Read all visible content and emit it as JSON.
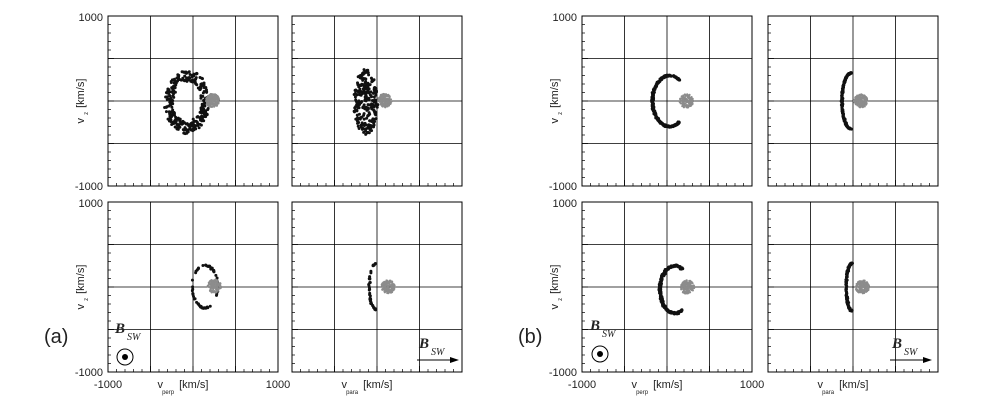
{
  "figure": {
    "panel_labels": [
      "(a)",
      "(b)"
    ],
    "axis_unit": "[km/s]",
    "xlabel_perp": {
      "base": "v",
      "sub": "perp",
      "unit": "[km/s]"
    },
    "xlabel_para": {
      "base": "v",
      "sub": "para",
      "unit": "[km/s]"
    },
    "ylabel": {
      "base": "v",
      "sub": "z",
      "unit": "[km/s]"
    },
    "b_field": {
      "symbol": "B",
      "sub": "SW"
    },
    "colors": {
      "points": "#111111",
      "sw_core": "#8c8c8c",
      "grid": "#000000"
    }
  },
  "chart_data": [
    {
      "type": "scatter",
      "panel": "(a)",
      "row": "top",
      "xaxis": "v_perp",
      "yaxis": "v_z",
      "xlim": [
        -1000,
        1000
      ],
      "ylim": [
        -1000,
        1000
      ],
      "xticks": [
        -1000,
        1000
      ],
      "yticks": [
        1000,
        -1000
      ],
      "grid": true,
      "series": [
        {
          "shape": "filled ring",
          "center": [
            -70,
            -10
          ],
          "radius_x": 260,
          "radius_y": 370,
          "thickness": 130,
          "n_points": 300
        },
        {
          "shape": "core",
          "center": [
            230,
            5
          ],
          "radius": 80
        }
      ]
    },
    {
      "type": "scatter",
      "panel": "(a)",
      "row": "top",
      "xaxis": "v_para",
      "yaxis": "v_z",
      "xlim": [
        -1000,
        1000
      ],
      "ylim": [
        -1000,
        1000
      ],
      "grid": true,
      "series": [
        {
          "shape": "lens",
          "center": [
            -130,
            -10
          ],
          "radius_x": 140,
          "radius_y": 390,
          "n_points": 240
        },
        {
          "shape": "core",
          "center": [
            90,
            5
          ],
          "radius": 80
        }
      ]
    },
    {
      "type": "scatter",
      "panel": "(a)",
      "row": "bottom",
      "xaxis": "v_perp",
      "yaxis": "v_z",
      "xlim": [
        -1000,
        1000
      ],
      "ylim": [
        -1000,
        1000
      ],
      "xticks": [
        -1000,
        1000
      ],
      "yticks": [
        1000,
        -1000
      ],
      "grid": true,
      "series": [
        {
          "shape": "ring",
          "center": [
            140,
            5
          ],
          "radius_x": 150,
          "radius_y": 250,
          "n_points": 60
        },
        {
          "shape": "core",
          "center": [
            250,
            10
          ],
          "radius": 80
        }
      ]
    },
    {
      "type": "scatter",
      "panel": "(a)",
      "row": "bottom",
      "xaxis": "v_para",
      "yaxis": "v_z",
      "xlim": [
        -1000,
        1000
      ],
      "ylim": [
        -1000,
        1000
      ],
      "grid": true,
      "series": [
        {
          "shape": "arc",
          "center": [
            -10,
            5
          ],
          "radius_x": 80,
          "radius_y": 270,
          "n_points": 45
        },
        {
          "shape": "core",
          "center": [
            130,
            5
          ],
          "radius": 80
        }
      ]
    },
    {
      "type": "scatter",
      "panel": "(b)",
      "row": "top",
      "xaxis": "v_perp",
      "yaxis": "v_z",
      "xlim": [
        -1000,
        1000
      ],
      "ylim": [
        -1000,
        1000
      ],
      "xticks": [
        -1000,
        1000
      ],
      "yticks": [
        1000,
        -1000
      ],
      "grid": true,
      "series": [
        {
          "shape": "C-arc",
          "center": [
            30,
            0
          ],
          "radius_x": 200,
          "radius_y": 300,
          "gap_angle_deg": [
            -55,
            55
          ],
          "n_points": 300
        },
        {
          "shape": "core",
          "center": [
            230,
            0
          ],
          "radius": 80
        }
      ]
    },
    {
      "type": "scatter",
      "panel": "(b)",
      "row": "top",
      "xaxis": "v_para",
      "yaxis": "v_z",
      "xlim": [
        -1000,
        1000
      ],
      "ylim": [
        -1000,
        1000
      ],
      "grid": true,
      "series": [
        {
          "shape": "arc",
          "center": [
            -20,
            0
          ],
          "radius_x": 110,
          "radius_y": 330,
          "n_points": 220
        },
        {
          "shape": "core",
          "center": [
            90,
            0
          ],
          "radius": 80
        }
      ]
    },
    {
      "type": "scatter",
      "panel": "(b)",
      "row": "bottom",
      "xaxis": "v_perp",
      "yaxis": "v_z",
      "xlim": [
        -1000,
        1000
      ],
      "ylim": [
        -1000,
        1000
      ],
      "xticks": [
        -1000,
        1000
      ],
      "yticks": [
        1000,
        -1000
      ],
      "grid": true,
      "series": [
        {
          "shape": "C-arc",
          "center": [
            90,
            -30
          ],
          "radius_x": 170,
          "radius_y": 280,
          "gap_angle_deg": [
            -60,
            60
          ],
          "n_points": 300
        },
        {
          "shape": "core",
          "center": [
            240,
            0
          ],
          "radius": 80
        }
      ]
    },
    {
      "type": "scatter",
      "panel": "(b)",
      "row": "bottom",
      "xaxis": "v_para",
      "yaxis": "v_z",
      "xlim": [
        -1000,
        1000
      ],
      "ylim": [
        -1000,
        1000
      ],
      "grid": true,
      "series": [
        {
          "shape": "arc",
          "center": [
            -10,
            0
          ],
          "radius_x": 70,
          "radius_y": 280,
          "n_points": 160
        },
        {
          "shape": "core",
          "center": [
            110,
            0
          ],
          "radius": 80
        }
      ]
    }
  ]
}
